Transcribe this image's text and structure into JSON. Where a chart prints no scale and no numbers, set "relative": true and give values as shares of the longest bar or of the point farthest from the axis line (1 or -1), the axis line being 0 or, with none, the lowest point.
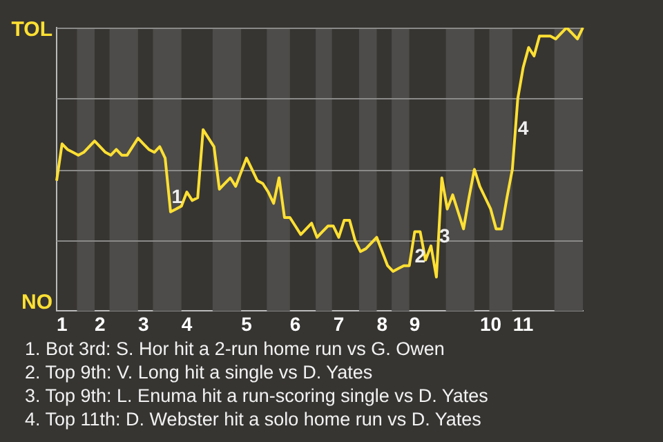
{
  "chart_data": {
    "type": "line",
    "relative": true,
    "categories": [
      null,
      "1",
      null,
      null,
      null,
      null,
      null,
      null,
      "2",
      null,
      null,
      null,
      null,
      null,
      null,
      null,
      "3",
      null,
      null,
      null,
      null,
      null,
      null,
      null,
      "4",
      null,
      null,
      null,
      null,
      null,
      null,
      null,
      null,
      null,
      null,
      "5",
      null,
      null,
      null,
      null,
      null,
      null,
      null,
      null,
      "6",
      null,
      null,
      null,
      null,
      null,
      null,
      null,
      "7",
      null,
      null,
      null,
      null,
      null,
      null,
      null,
      "8",
      null,
      null,
      null,
      null,
      null,
      "9",
      null,
      null,
      null,
      null,
      null,
      null,
      null,
      null,
      null,
      null,
      null,
      null,
      null,
      "10",
      null,
      null,
      null,
      null,
      null,
      "11",
      null,
      null,
      null,
      null,
      null,
      null,
      null,
      null,
      null,
      null,
      null
    ],
    "series": [
      {
        "color": "#ffe033",
        "values": [
          0.46,
          0.59,
          0.57,
          0.56,
          0.55,
          0.56,
          0.58,
          0.6,
          0.58,
          0.56,
          0.55,
          0.57,
          0.55,
          0.55,
          0.58,
          0.61,
          0.59,
          0.57,
          0.56,
          0.58,
          0.54,
          0.35,
          0.36,
          0.37,
          0.42,
          0.39,
          0.4,
          0.64,
          0.61,
          0.58,
          0.43,
          0.45,
          0.47,
          0.44,
          0.49,
          0.54,
          0.5,
          0.46,
          0.45,
          0.42,
          0.38,
          0.47,
          0.33,
          0.33,
          0.3,
          0.27,
          0.29,
          0.31,
          0.26,
          0.28,
          0.3,
          0.3,
          0.26,
          0.32,
          0.32,
          0.25,
          0.21,
          0.22,
          0.24,
          0.26,
          0.21,
          0.16,
          0.14,
          0.15,
          0.16,
          0.16,
          0.28,
          0.28,
          0.18,
          0.23,
          0.12,
          0.47,
          0.36,
          0.41,
          0.35,
          0.29,
          0.4,
          0.5,
          0.44,
          0.4,
          0.36,
          0.29,
          0.29,
          0.4,
          0.5,
          0.75,
          0.86,
          0.93,
          0.9,
          0.97,
          0.97,
          0.97,
          0.96,
          0.98,
          1,
          0.98,
          0.96,
          1
        ]
      }
    ],
    "legend": false,
    "marker": "none",
    "line_style": "solid",
    "ref_lines": [
      {
        "axis": "y",
        "value": 0.25,
        "color": "#8a8a88"
      },
      {
        "axis": "y",
        "value": 0.5,
        "color": "#8a8a88"
      },
      {
        "axis": "y",
        "value": 0.75,
        "color": "#8a8a88"
      },
      {
        "axis": "y",
        "value": 1,
        "color": "#8a8a88"
      }
    ],
    "annotations": [
      "TOL",
      "NO",
      "1",
      "2",
      "3",
      "4",
      "1. Bot 3rd: S. Hor hit a 2-run home run vs G. Owen",
      "2. Top 9th: V. Long hit a single vs D. Yates",
      "3. Top 9th: L. Enuma hit a run-scoring single vs D. Yates",
      "4. Top 11th: D. Webster hit a solo home run vs D. Yates"
    ]
  }
}
